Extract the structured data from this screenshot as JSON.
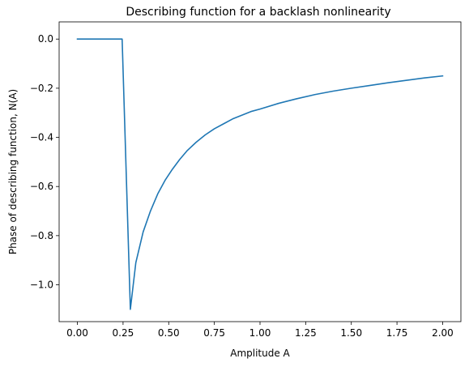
{
  "chart_data": {
    "type": "line",
    "title": "Describing function for a backlash nonlinearity",
    "xlabel": "Amplitude A",
    "ylabel": "Phase of describing function, N(A)",
    "xlim": [
      -0.1,
      2.1
    ],
    "ylim": [
      -1.15,
      0.07
    ],
    "grid": false,
    "xticks": [
      0.0,
      0.25,
      0.5,
      0.75,
      1.0,
      1.25,
      1.5,
      1.75,
      2.0
    ],
    "xtick_labels": [
      "0.00",
      "0.25",
      "0.50",
      "0.75",
      "1.00",
      "1.25",
      "1.50",
      "1.75",
      "2.00"
    ],
    "yticks": [
      0.0,
      -0.2,
      -0.4,
      -0.6,
      -0.8,
      -1.0
    ],
    "ytick_labels": [
      "0.0",
      "−0.2",
      "−0.4",
      "−0.6",
      "−0.8",
      "−1.0"
    ],
    "series": [
      {
        "color": "#1f77b4",
        "x": [
          0.0,
          0.04,
          0.08,
          0.12,
          0.16,
          0.2,
          0.24,
          0.245,
          0.29,
          0.32,
          0.36,
          0.4,
          0.44,
          0.48,
          0.52,
          0.56,
          0.6,
          0.65,
          0.7,
          0.75,
          0.8,
          0.85,
          0.9,
          0.95,
          1.0,
          1.1,
          1.2,
          1.3,
          1.4,
          1.5,
          1.6,
          1.7,
          1.8,
          1.9,
          2.0
        ],
        "y": [
          0.0,
          0.0,
          0.0,
          0.0,
          0.0,
          0.0,
          0.0,
          0.0,
          -1.1,
          -0.91,
          -0.785,
          -0.7,
          -0.63,
          -0.575,
          -0.53,
          -0.49,
          -0.455,
          -0.42,
          -0.39,
          -0.365,
          -0.345,
          -0.325,
          -0.31,
          -0.295,
          -0.285,
          -0.262,
          -0.243,
          -0.226,
          -0.212,
          -0.2,
          -0.189,
          -0.178,
          -0.168,
          -0.158,
          -0.15
        ]
      }
    ]
  }
}
